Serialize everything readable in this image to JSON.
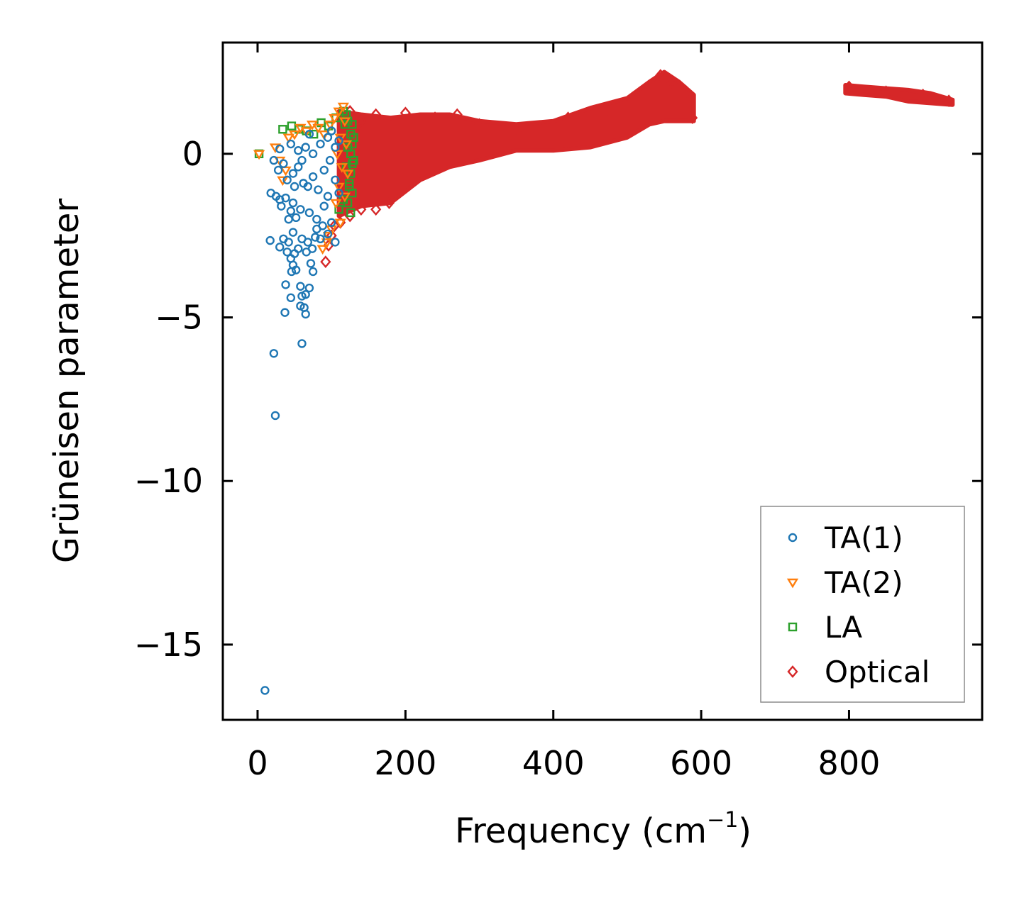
{
  "chart_data": {
    "type": "scatter",
    "title": "",
    "xlabel": "Frequency (cm",
    "xlabel_exponent": "−1",
    "xlabel_close": ")",
    "ylabel": "Grüneisen parameter",
    "xlim": [
      -47,
      980
    ],
    "ylim": [
      -17.3,
      3.4
    ],
    "xticks": [
      0,
      200,
      400,
      600,
      800
    ],
    "xtick_labels": [
      "0",
      "200",
      "400",
      "600",
      "800"
    ],
    "yticks": [
      0,
      -5,
      -10,
      -15
    ],
    "ytick_labels": [
      "0",
      "−5",
      "−10",
      "−15"
    ],
    "grid": false,
    "legend_position": "lower-right",
    "series": [
      {
        "name": "TA(1)",
        "marker": "circle",
        "color": "#1f77b4",
        "points": [
          [
            10,
            -16.4
          ],
          [
            24,
            -8.0
          ],
          [
            22,
            -6.1
          ],
          [
            60,
            -5.8
          ],
          [
            37,
            -4.85
          ],
          [
            65,
            -4.9
          ],
          [
            63,
            -4.7
          ],
          [
            58,
            -4.65
          ],
          [
            45,
            -4.4
          ],
          [
            60,
            -4.35
          ],
          [
            65,
            -4.3
          ],
          [
            70,
            -4.1
          ],
          [
            58,
            -4.05
          ],
          [
            38,
            -4.0
          ],
          [
            46,
            -3.6
          ],
          [
            52,
            -3.55
          ],
          [
            48,
            -3.4
          ],
          [
            75,
            -3.6
          ],
          [
            72,
            -3.35
          ],
          [
            45,
            -3.2
          ],
          [
            50,
            -3.05
          ],
          [
            40,
            -3.0
          ],
          [
            55,
            -2.9
          ],
          [
            30,
            -2.85
          ],
          [
            42,
            -2.7
          ],
          [
            17,
            -2.65
          ],
          [
            35,
            -2.6
          ],
          [
            60,
            -2.6
          ],
          [
            68,
            -2.7
          ],
          [
            78,
            -2.55
          ],
          [
            85,
            -2.6
          ],
          [
            95,
            -2.45
          ],
          [
            105,
            -2.7
          ],
          [
            48,
            -2.4
          ],
          [
            88,
            -2.2
          ],
          [
            100,
            -2.1
          ],
          [
            80,
            -2.0
          ],
          [
            42,
            -2.0
          ],
          [
            52,
            -1.95
          ],
          [
            32,
            -1.6
          ],
          [
            45,
            -1.75
          ],
          [
            18,
            -1.2
          ],
          [
            25,
            -1.3
          ],
          [
            30,
            -1.4
          ],
          [
            38,
            -1.35
          ],
          [
            48,
            -1.5
          ],
          [
            58,
            -1.7
          ],
          [
            70,
            -1.8
          ],
          [
            90,
            -1.6
          ],
          [
            95,
            -1.3
          ],
          [
            110,
            -1.2
          ],
          [
            28,
            -0.5
          ],
          [
            35,
            -0.3
          ],
          [
            40,
            -0.8
          ],
          [
            22,
            -0.2
          ],
          [
            48,
            -0.6
          ],
          [
            55,
            -0.4
          ],
          [
            62,
            -0.9
          ],
          [
            68,
            -1.0
          ],
          [
            75,
            -0.7
          ],
          [
            82,
            -1.1
          ],
          [
            90,
            -0.5
          ],
          [
            98,
            -0.2
          ],
          [
            105,
            -0.8
          ],
          [
            30,
            0.15
          ],
          [
            45,
            0.3
          ],
          [
            55,
            0.1
          ],
          [
            65,
            0.2
          ],
          [
            75,
            0.0
          ],
          [
            85,
            0.3
          ],
          [
            95,
            0.5
          ],
          [
            100,
            0.7
          ],
          [
            105,
            0.2
          ],
          [
            110,
            0.4
          ],
          [
            70,
            0.6
          ],
          [
            60,
            -0.2
          ],
          [
            50,
            -1.0
          ],
          [
            80,
            -2.3
          ],
          [
            66,
            -3.0
          ],
          [
            74,
            -2.9
          ]
        ]
      },
      {
        "name": "TA(2)",
        "marker": "triangle-down",
        "color": "#ff7f0e",
        "points": [
          [
            2,
            0.0
          ],
          [
            24,
            0.2
          ],
          [
            30,
            -0.2
          ],
          [
            38,
            -0.5
          ],
          [
            34,
            -0.8
          ],
          [
            42,
            0.5
          ],
          [
            50,
            0.6
          ],
          [
            58,
            0.8
          ],
          [
            66,
            0.7
          ],
          [
            74,
            0.9
          ],
          [
            82,
            0.8
          ],
          [
            90,
            0.6
          ],
          [
            98,
            0.9
          ],
          [
            104,
            1.1
          ],
          [
            110,
            1.3
          ],
          [
            116,
            1.45
          ],
          [
            118,
            1.0
          ],
          [
            112,
            0.5
          ],
          [
            108,
            0.0
          ],
          [
            114,
            -0.4
          ],
          [
            110,
            -1.0
          ],
          [
            106,
            -1.5
          ],
          [
            112,
            -2.1
          ],
          [
            100,
            -2.3
          ],
          [
            94,
            -2.7
          ],
          [
            88,
            -2.9
          ],
          [
            96,
            -2.5
          ],
          [
            120,
            0.3
          ],
          [
            122,
            -0.6
          ],
          [
            118,
            -1.3
          ]
        ]
      },
      {
        "name": "LA",
        "marker": "square",
        "color": "#2ca02c",
        "points": [
          [
            2,
            0.0
          ],
          [
            34,
            0.75
          ],
          [
            46,
            0.85
          ],
          [
            56,
            0.75
          ],
          [
            66,
            0.7
          ],
          [
            76,
            0.6
          ],
          [
            86,
            0.95
          ],
          [
            96,
            0.85
          ],
          [
            106,
            1.1
          ],
          [
            116,
            1.3
          ],
          [
            122,
            1.0
          ],
          [
            126,
            0.6
          ],
          [
            128,
            0.3
          ],
          [
            126,
            0.0
          ],
          [
            128,
            -0.3
          ],
          [
            126,
            -0.6
          ],
          [
            124,
            -0.9
          ],
          [
            128,
            -1.2
          ],
          [
            122,
            -1.5
          ],
          [
            126,
            -1.8
          ],
          [
            118,
            0.9
          ],
          [
            122,
            0.2
          ],
          [
            120,
            -0.4
          ],
          [
            124,
            -1.0
          ],
          [
            130,
            -0.2
          ],
          [
            130,
            0.5
          ],
          [
            116,
            -1.4
          ],
          [
            110,
            -1.7
          ],
          [
            120,
            1.2
          ],
          [
            128,
            0.9
          ]
        ]
      },
      {
        "name": "Optical",
        "marker": "diamond",
        "color": "#d62728",
        "bands": [
          {
            "x": [
              110,
              140,
              180,
              220,
              260,
              300,
              350,
              400,
              450,
              500,
              530,
              550,
              570,
              590
            ],
            "upper": [
              1.3,
              1.2,
              1.1,
              1.2,
              1.2,
              1.0,
              0.9,
              1.0,
              1.4,
              1.7,
              2.2,
              2.5,
              2.2,
              1.8
            ],
            "lower": [
              -1.9,
              -1.6,
              -1.5,
              -0.8,
              -0.4,
              -0.2,
              0.1,
              0.1,
              0.2,
              0.5,
              0.9,
              1.0,
              1.0,
              1.0
            ]
          },
          {
            "x": [
              795,
              820,
              850,
              880,
              910,
              940
            ],
            "upper": [
              2.1,
              2.05,
              2.0,
              1.95,
              1.85,
              1.65
            ],
            "lower": [
              1.85,
              1.8,
              1.75,
              1.6,
              1.55,
              1.5
            ]
          }
        ],
        "points": [
          [
            92,
            -3.3
          ],
          [
            96,
            -2.8
          ],
          [
            100,
            -2.5
          ],
          [
            104,
            -2.2
          ],
          [
            112,
            -2.1
          ],
          [
            125,
            -1.9
          ],
          [
            140,
            -1.7
          ],
          [
            160,
            -1.7
          ],
          [
            178,
            -1.5
          ],
          [
            140,
            1.0
          ],
          [
            160,
            1.2
          ],
          [
            125,
            1.3
          ],
          [
            200,
            1.25
          ],
          [
            240,
            1.1
          ],
          [
            270,
            1.2
          ],
          [
            300,
            0.9
          ],
          [
            350,
            0.7
          ],
          [
            420,
            1.1
          ],
          [
            470,
            1.2
          ],
          [
            520,
            1.9
          ],
          [
            545,
            2.4
          ],
          [
            560,
            2.2
          ],
          [
            580,
            1.9
          ],
          [
            588,
            1.1
          ],
          [
            800,
            2.05
          ],
          [
            850,
            1.9
          ],
          [
            900,
            1.8
          ],
          [
            935,
            1.62
          ]
        ]
      }
    ]
  },
  "colors": {
    "TA(1)": "#1f77b4",
    "TA(2)": "#ff7f0e",
    "LA": "#2ca02c",
    "Optical": "#d62728",
    "axes": "#000000",
    "legend_frame": "#8c8c8c"
  }
}
